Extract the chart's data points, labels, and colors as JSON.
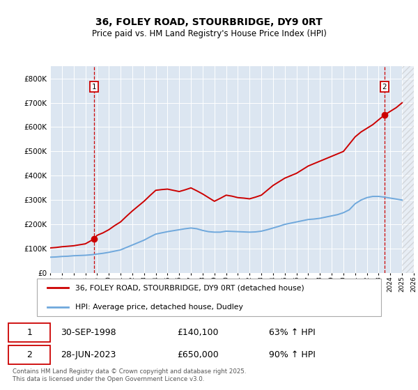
{
  "title": "36, FOLEY ROAD, STOURBRIDGE, DY9 0RT",
  "subtitle": "Price paid vs. HM Land Registry's House Price Index (HPI)",
  "hpi_label": "HPI: Average price, detached house, Dudley",
  "property_label": "36, FOLEY ROAD, STOURBRIDGE, DY9 0RT (detached house)",
  "footer": "Contains HM Land Registry data © Crown copyright and database right 2025.\nThis data is licensed under the Open Government Licence v3.0.",
  "bg_color": "#dce6f1",
  "plot_bg_color": "#dce6f1",
  "hpi_color": "#6fa8dc",
  "price_color": "#cc0000",
  "annotation1_date": "30-SEP-1998",
  "annotation1_price": "£140,100",
  "annotation1_hpi": "63% ↑ HPI",
  "annotation1_year": 1998.75,
  "annotation1_value": 140100,
  "annotation2_date": "28-JUN-2023",
  "annotation2_price": "£650,000",
  "annotation2_hpi": "90% ↑ HPI",
  "annotation2_year": 2023.5,
  "annotation2_value": 650000,
  "ylim": [
    0,
    850000
  ],
  "xlim": [
    1995,
    2026
  ],
  "hpi_years": [
    1995.0,
    1995.5,
    1996.0,
    1996.5,
    1997.0,
    1997.5,
    1998.0,
    1998.5,
    1999.0,
    1999.5,
    2000.0,
    2000.5,
    2001.0,
    2001.5,
    2002.0,
    2002.5,
    2003.0,
    2003.5,
    2004.0,
    2004.5,
    2005.0,
    2005.5,
    2006.0,
    2006.5,
    2007.0,
    2007.5,
    2008.0,
    2008.5,
    2009.0,
    2009.5,
    2010.0,
    2010.5,
    2011.0,
    2011.5,
    2012.0,
    2012.5,
    2013.0,
    2013.5,
    2014.0,
    2014.5,
    2015.0,
    2015.5,
    2016.0,
    2016.5,
    2017.0,
    2017.5,
    2018.0,
    2018.5,
    2019.0,
    2019.5,
    2020.0,
    2020.5,
    2021.0,
    2021.5,
    2022.0,
    2022.5,
    2023.0,
    2023.5,
    2024.0,
    2024.5,
    2025.0
  ],
  "hpi_values": [
    65000,
    66000,
    68000,
    69000,
    71000,
    72000,
    73000,
    75000,
    78000,
    81000,
    85000,
    90000,
    95000,
    105000,
    115000,
    125000,
    135000,
    148000,
    160000,
    165000,
    170000,
    174000,
    178000,
    182000,
    185000,
    182000,
    175000,
    170000,
    168000,
    168000,
    172000,
    171000,
    170000,
    169000,
    168000,
    169000,
    172000,
    178000,
    185000,
    192000,
    200000,
    205000,
    210000,
    215000,
    220000,
    222000,
    225000,
    230000,
    235000,
    240000,
    248000,
    260000,
    285000,
    300000,
    310000,
    315000,
    315000,
    312000,
    308000,
    304000,
    300000
  ],
  "price_years": [
    1995.0,
    1995.5,
    1996.0,
    1996.5,
    1997.0,
    1997.5,
    1998.0,
    1998.75,
    1999.0,
    1999.5,
    2000.0,
    2000.5,
    2001.0,
    2001.5,
    2002.0,
    2002.5,
    2003.0,
    2003.5,
    2004.0,
    2004.5,
    2005.0,
    2005.5,
    2006.0,
    2006.5,
    2007.0,
    2007.5,
    2008.0,
    2008.5,
    2009.0,
    2009.5,
    2010.0,
    2010.5,
    2011.0,
    2011.5,
    2012.0,
    2012.5,
    2013.0,
    2013.5,
    2014.0,
    2014.5,
    2015.0,
    2015.5,
    2016.0,
    2016.5,
    2017.0,
    2017.5,
    2018.0,
    2018.5,
    2019.0,
    2019.5,
    2020.0,
    2020.5,
    2021.0,
    2021.5,
    2022.0,
    2022.5,
    2023.0,
    2023.5,
    2024.0,
    2024.5,
    2025.0
  ],
  "price_values": [
    103000,
    105000,
    108000,
    110000,
    112000,
    116000,
    120000,
    140100,
    155000,
    165000,
    178000,
    195000,
    210000,
    233000,
    255000,
    275000,
    295000,
    318000,
    340000,
    343000,
    345000,
    340000,
    335000,
    342000,
    350000,
    338000,
    325000,
    310000,
    295000,
    307000,
    320000,
    316000,
    310000,
    308000,
    305000,
    312000,
    320000,
    340000,
    360000,
    375000,
    390000,
    400000,
    410000,
    425000,
    440000,
    450000,
    460000,
    470000,
    480000,
    490000,
    500000,
    530000,
    560000,
    580000,
    595000,
    610000,
    630000,
    650000,
    665000,
    680000,
    700000
  ],
  "hatch_start": 2025.0,
  "hatch_end": 2026.0
}
